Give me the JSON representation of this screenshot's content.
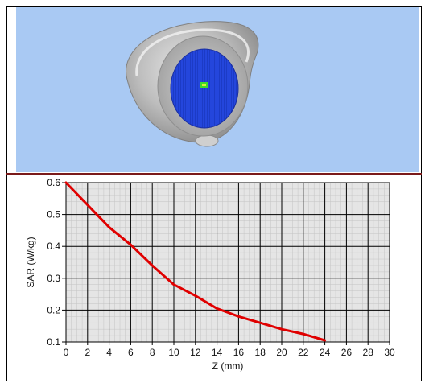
{
  "chart_data": {
    "type": "line",
    "xlabel": "Z (mm)",
    "ylabel": "SAR (W/kg)",
    "xlim": [
      0,
      30
    ],
    "ylim": [
      0.1,
      0.6
    ],
    "xticks": [
      0,
      2,
      4,
      6,
      8,
      10,
      12,
      14,
      16,
      18,
      20,
      22,
      24,
      26,
      28,
      30
    ],
    "yticks": [
      0.1,
      0.2,
      0.3,
      0.4,
      0.5,
      0.6
    ],
    "grid": true,
    "series": [
      {
        "color": "#e00000",
        "x": [
          0,
          2,
          4,
          6,
          8,
          10,
          12,
          14,
          16,
          18,
          20,
          22,
          24
        ],
        "y": [
          0.6,
          0.53,
          0.46,
          0.405,
          0.34,
          0.28,
          0.245,
          0.205,
          0.18,
          0.16,
          0.14,
          0.125,
          0.105
        ]
      }
    ]
  },
  "render": {
    "background_color": "#a9c9f3",
    "phantom_color": "#b8b8b8",
    "scan_area_color": "#1f3fd6",
    "hotspot_color": "#3fdc2a"
  }
}
